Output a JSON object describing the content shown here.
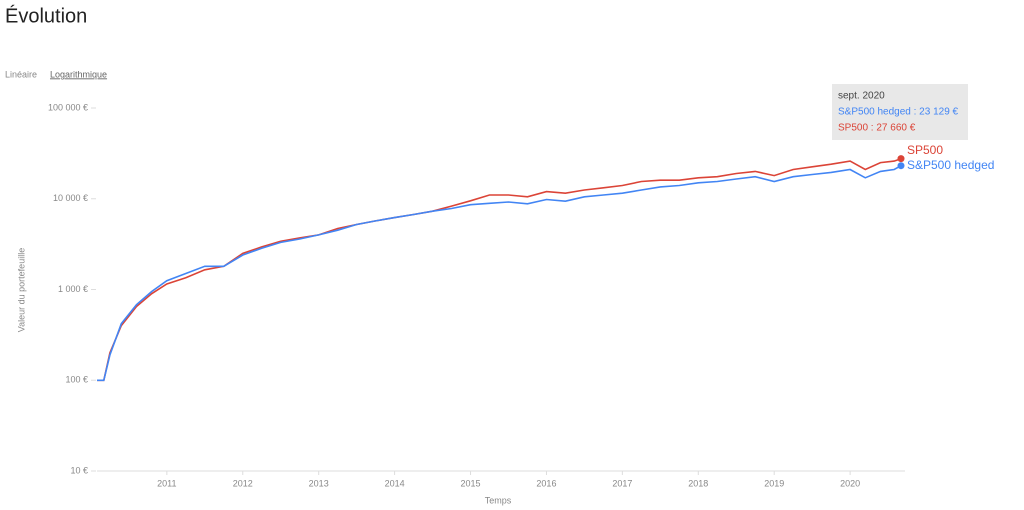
{
  "chart_data": {
    "type": "line",
    "title": "Évolution",
    "scale_options": [
      "Linéaire",
      "Logarithmique"
    ],
    "scale": "log",
    "ylabel": "Valeur du portefeuille",
    "xlabel": "Temps",
    "x": [
      2010.08,
      2010.17,
      2010.25,
      2010.4,
      2010.6,
      2010.8,
      2011.0,
      2011.25,
      2011.5,
      2011.75,
      2012.0,
      2012.25,
      2012.5,
      2012.75,
      2013.0,
      2013.25,
      2013.5,
      2013.75,
      2014.0,
      2014.25,
      2014.5,
      2014.75,
      2015.0,
      2015.25,
      2015.5,
      2015.75,
      2016.0,
      2016.25,
      2016.5,
      2016.75,
      2017.0,
      2017.25,
      2017.5,
      2017.75,
      2018.0,
      2018.25,
      2018.5,
      2018.75,
      2019.0,
      2019.25,
      2019.5,
      2019.75,
      2020.0,
      2020.2,
      2020.4,
      2020.58,
      2020.67
    ],
    "xlim": [
      2010.08,
      2020.67
    ],
    "xticks": [
      2011,
      2012,
      2013,
      2014,
      2015,
      2016,
      2017,
      2018,
      2019,
      2020
    ],
    "ylim": [
      10,
      100000
    ],
    "yticks": [
      {
        "value": 10,
        "label": "10 €"
      },
      {
        "value": 100,
        "label": "100 €"
      },
      {
        "value": 1000,
        "label": "1 000 €"
      },
      {
        "value": 10000,
        "label": "10 000 €"
      },
      {
        "value": 100000,
        "label": "100 000 €"
      }
    ],
    "series": [
      {
        "name": "SP500",
        "color": "#db4437",
        "values": [
          100,
          100,
          200,
          400,
          650,
          900,
          1150,
          1350,
          1650,
          1800,
          2500,
          2950,
          3400,
          3700,
          4000,
          4700,
          5200,
          5700,
          6200,
          6700,
          7300,
          8300,
          9500,
          11000,
          11000,
          10500,
          12000,
          11500,
          12500,
          13200,
          14000,
          15500,
          16000,
          16000,
          17000,
          17500,
          19000,
          20000,
          18000,
          21000,
          22500,
          24000,
          26000,
          21000,
          25000,
          26000,
          27660
        ]
      },
      {
        "name": "S&P500 hedged",
        "color": "#4285f4",
        "values": [
          100,
          100,
          190,
          420,
          680,
          950,
          1250,
          1500,
          1800,
          1800,
          2400,
          2850,
          3300,
          3600,
          4000,
          4500,
          5200,
          5700,
          6200,
          6700,
          7300,
          7800,
          8600,
          8900,
          9200,
          8800,
          9800,
          9400,
          10500,
          11000,
          11500,
          12500,
          13500,
          14000,
          15000,
          15500,
          16500,
          17500,
          15500,
          17500,
          18500,
          19500,
          21000,
          17000,
          20000,
          21000,
          23129
        ]
      }
    ],
    "tooltip": {
      "title": "sept. 2020",
      "lines": [
        "S&P500 hedged : 23 129 €",
        "SP500 : 27 660 €"
      ]
    }
  }
}
